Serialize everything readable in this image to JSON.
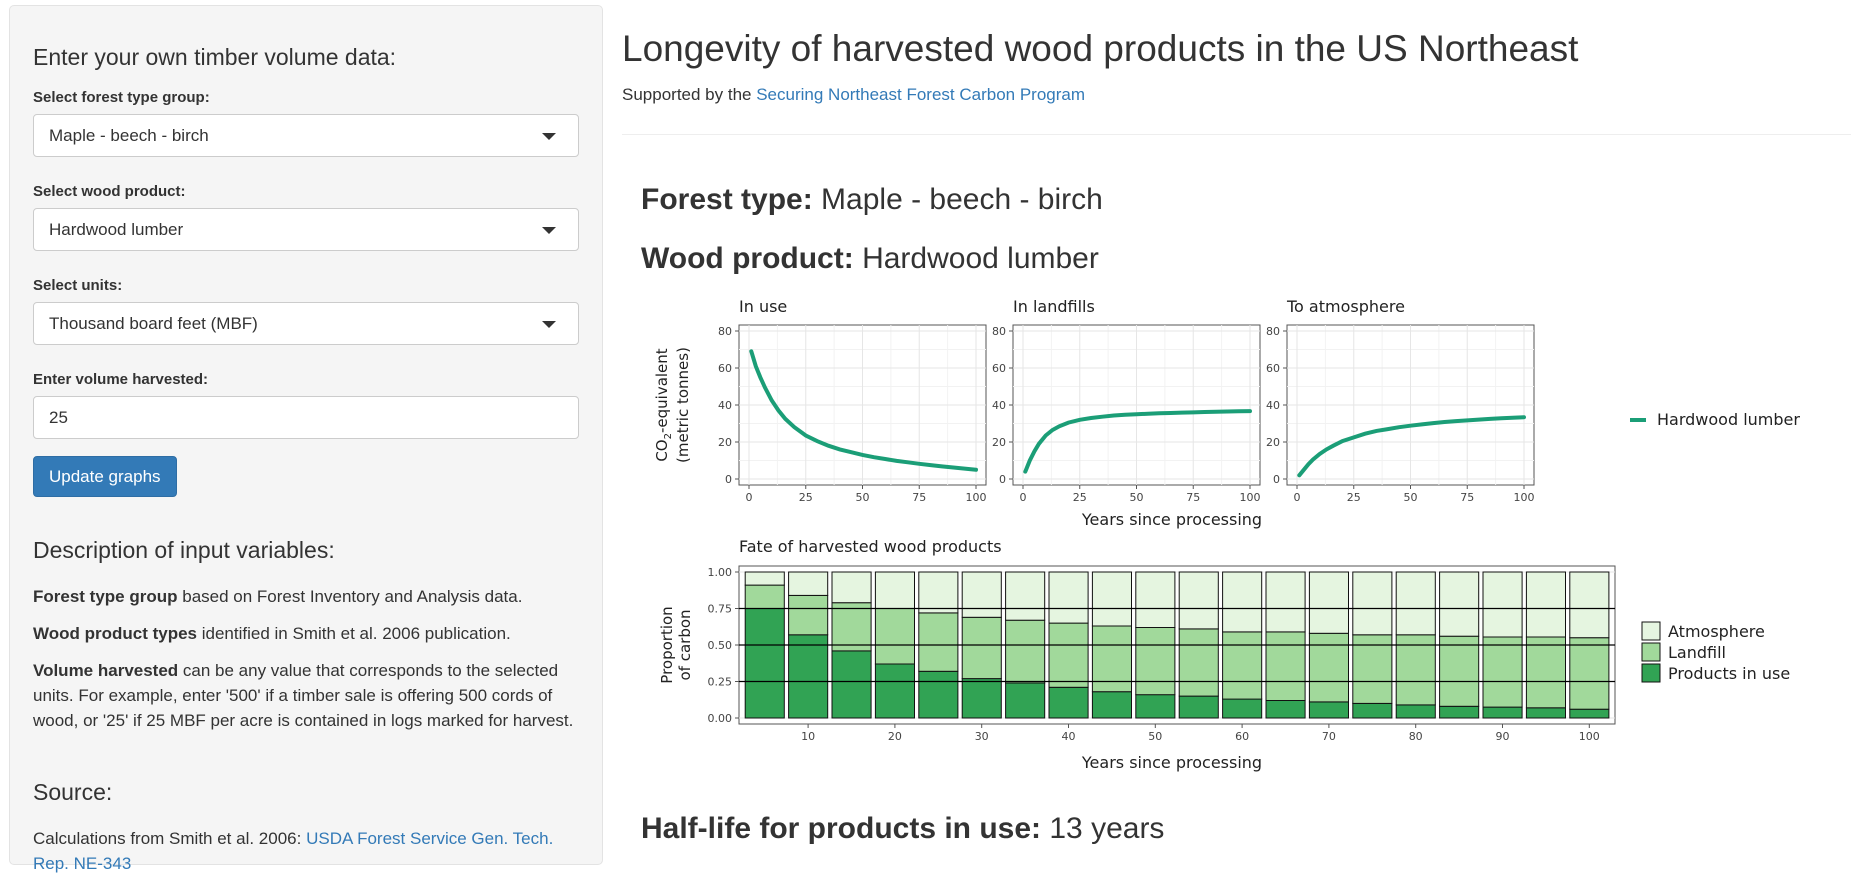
{
  "sidebar": {
    "heading": "Enter your own timber volume data:",
    "forest_label": "Select forest type group:",
    "forest_value": "Maple - beech - birch",
    "product_label": "Select wood product:",
    "product_value": "Hardwood lumber",
    "units_label": "Select units:",
    "units_value": "Thousand board feet (MBF)",
    "volume_label": "Enter volume harvested:",
    "volume_value": "25",
    "update_button": "Update graphs",
    "desc_heading": "Description of input variables:",
    "desc1_bold": "Forest type group",
    "desc1_rest": " based on Forest Inventory and Analysis data.",
    "desc2_bold": "Wood product types",
    "desc2_rest": " identified in Smith et al. 2006 publication.",
    "desc3_bold": "Volume harvested",
    "desc3_rest": " can be any value that corresponds to the selected units. For example, enter '500' if a timber sale is offering 500 cords of wood, or '25' if 25 MBF per acre is contained in logs marked for harvest.",
    "source_heading": "Source:",
    "source_text": "Calculations from Smith et al. 2006: ",
    "source_link": "USDA Forest Service Gen. Tech. Rep. NE-343"
  },
  "main": {
    "title": "Longevity of harvested wood products in the US Northeast",
    "support_prefix": "Supported by the ",
    "support_link": "Securing Northeast Forest Carbon Program",
    "forest_label": "Forest type:",
    "forest_value": " Maple - beech - birch",
    "product_label": "Wood product:",
    "product_value": " Hardwood lumber",
    "halflife_label": "Half-life for products in use:",
    "halflife_value": " 13 years"
  },
  "colors": {
    "line": "#1b9e77",
    "atmosphere": "#e5f5e0",
    "landfill": "#a1d99b",
    "in_use": "#31a354",
    "link": "#337ab7"
  },
  "chart_data": [
    {
      "type": "line",
      "panels": [
        "In use",
        "In landfills",
        "To atmosphere"
      ],
      "ylabel_line1": "CO",
      "ylabel_sub": "2",
      "ylabel_line1_rest": "-equivalent",
      "ylabel_line2": "(metric tonnes)",
      "xlabel": "Years since processing",
      "xlim": [
        0,
        100
      ],
      "ylim": [
        0,
        80
      ],
      "xticks": [
        "0",
        "25",
        "50",
        "75",
        "100"
      ],
      "yticks": [
        "0",
        "20",
        "40",
        "60",
        "80"
      ],
      "legend": "Hardwood lumber",
      "x": [
        1,
        3,
        5,
        7,
        10,
        13,
        16,
        20,
        25,
        30,
        35,
        40,
        45,
        50,
        55,
        60,
        65,
        70,
        75,
        80,
        85,
        90,
        95,
        100
      ],
      "series": [
        {
          "name": "Hardwood lumber",
          "panel": "In use",
          "values": [
            69,
            61,
            55,
            49.5,
            42.5,
            37,
            32.5,
            28,
            23.5,
            20.5,
            18,
            16,
            14.5,
            13,
            11.8,
            10.8,
            9.8,
            9,
            8.2,
            7.5,
            6.8,
            6.2,
            5.6,
            5
          ]
        },
        {
          "name": "Hardwood lumber",
          "panel": "In landfills",
          "values": [
            4,
            10,
            15,
            19,
            23.5,
            26.5,
            28.5,
            30.5,
            32,
            33,
            33.7,
            34.3,
            34.7,
            35,
            35.3,
            35.5,
            35.7,
            35.9,
            36,
            36.2,
            36.3,
            36.5,
            36.6,
            36.7
          ]
        },
        {
          "name": "Hardwood lumber",
          "panel": "To atmosphere",
          "values": [
            2,
            5,
            8,
            10.5,
            13.5,
            16,
            18,
            20.5,
            22.5,
            24.5,
            26,
            27,
            28,
            28.8,
            29.5,
            30.2,
            30.8,
            31.3,
            31.7,
            32.1,
            32.5,
            32.8,
            33.1,
            33.4
          ]
        }
      ]
    },
    {
      "type": "bar",
      "title": "Fate of harvested wood products",
      "xlabel": "Years since processing",
      "ylabel_line1": "Proportion",
      "ylabel_line2": "of carbon",
      "ylim": [
        0,
        1
      ],
      "yticks": [
        "0.00",
        "0.25",
        "0.50",
        "0.75",
        "1.00"
      ],
      "xticks": [
        "10",
        "20",
        "30",
        "40",
        "50",
        "60",
        "70",
        "80",
        "90",
        "100"
      ],
      "categories": [
        5,
        10,
        15,
        20,
        25,
        30,
        35,
        40,
        45,
        50,
        55,
        60,
        65,
        70,
        75,
        80,
        85,
        90,
        95,
        100
      ],
      "series": [
        {
          "name": "Products in use",
          "values": [
            0.75,
            0.57,
            0.46,
            0.37,
            0.32,
            0.27,
            0.24,
            0.21,
            0.18,
            0.16,
            0.15,
            0.13,
            0.12,
            0.11,
            0.1,
            0.09,
            0.08,
            0.075,
            0.07,
            0.06
          ]
        },
        {
          "name": "Landfill",
          "values": [
            0.16,
            0.27,
            0.33,
            0.38,
            0.4,
            0.42,
            0.43,
            0.44,
            0.45,
            0.46,
            0.46,
            0.46,
            0.47,
            0.47,
            0.47,
            0.48,
            0.48,
            0.48,
            0.485,
            0.49
          ]
        },
        {
          "name": "Atmosphere",
          "values": [
            0.09,
            0.16,
            0.21,
            0.25,
            0.28,
            0.31,
            0.33,
            0.35,
            0.37,
            0.38,
            0.39,
            0.41,
            0.41,
            0.42,
            0.43,
            0.43,
            0.44,
            0.445,
            0.445,
            0.45
          ]
        }
      ],
      "legend": [
        "Atmosphere",
        "Landfill",
        "Products in use"
      ]
    }
  ]
}
